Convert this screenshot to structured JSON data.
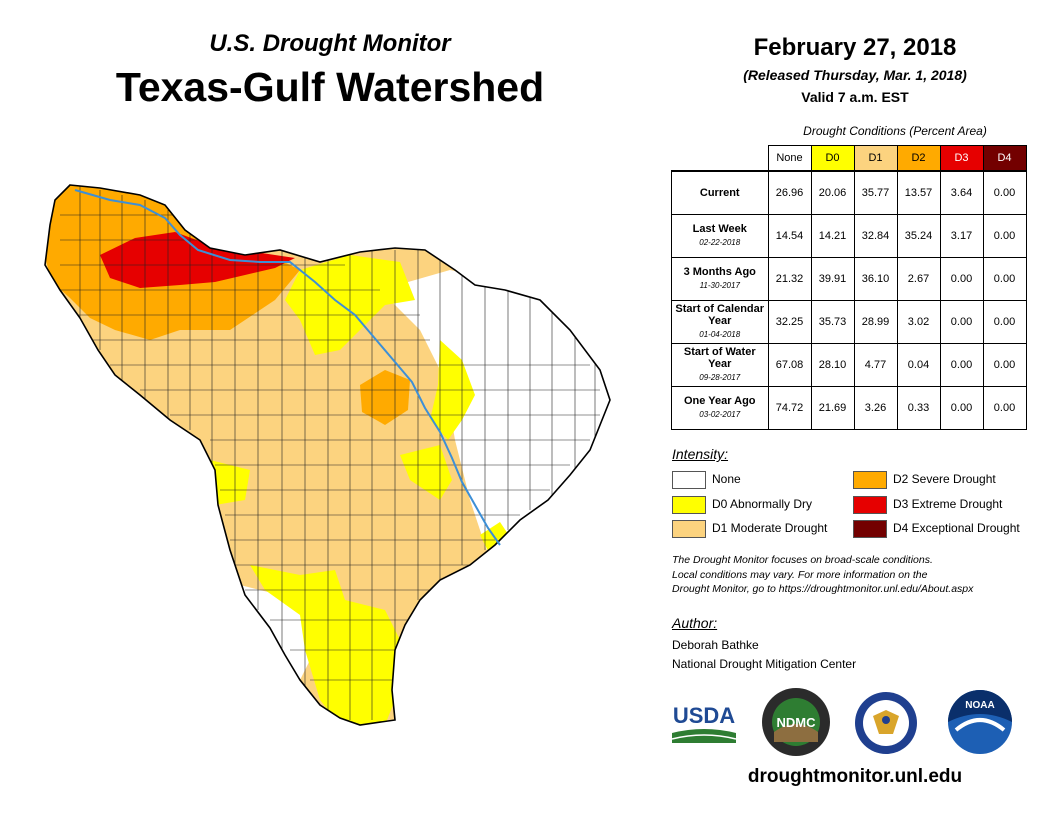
{
  "header": {
    "subtitle": "U.S. Drought Monitor",
    "title": "Texas-Gulf Watershed",
    "date": "February 27, 2018",
    "released": "(Released Thursday, Mar. 1, 2018)",
    "valid": "Valid 7 a.m. EST"
  },
  "table": {
    "caption": "Drought Conditions (Percent Area)",
    "columns": [
      "None",
      "D0",
      "D1",
      "D2",
      "D3",
      "D4"
    ],
    "rows": [
      {
        "label": "Current",
        "date": "",
        "values": [
          "26.96",
          "20.06",
          "35.77",
          "13.57",
          "3.64",
          "0.00"
        ]
      },
      {
        "label": "Last Week",
        "date": "02-22-2018",
        "values": [
          "14.54",
          "14.21",
          "32.84",
          "35.24",
          "3.17",
          "0.00"
        ]
      },
      {
        "label": "3 Months Ago",
        "date": "11-30-2017",
        "values": [
          "21.32",
          "39.91",
          "36.10",
          "2.67",
          "0.00",
          "0.00"
        ]
      },
      {
        "label": "Start of Calendar Year",
        "date": "01-04-2018",
        "values": [
          "32.25",
          "35.73",
          "28.99",
          "3.02",
          "0.00",
          "0.00"
        ]
      },
      {
        "label": "Start of Water Year",
        "date": "09-28-2017",
        "values": [
          "67.08",
          "28.10",
          "4.77",
          "0.04",
          "0.00",
          "0.00"
        ]
      },
      {
        "label": "One Year Ago",
        "date": "03-02-2017",
        "values": [
          "74.72",
          "21.69",
          "3.26",
          "0.33",
          "0.00",
          "0.00"
        ]
      }
    ]
  },
  "legend": {
    "heading": "Intensity:",
    "items": [
      {
        "label": "None",
        "color": "#ffffff"
      },
      {
        "label": "D0 Abnormally Dry",
        "color": "#ffff00"
      },
      {
        "label": "D1 Moderate Drought",
        "color": "#fcd37f"
      },
      {
        "label": "D2 Severe Drought",
        "color": "#ffaa00"
      },
      {
        "label": "D3 Extreme Drought",
        "color": "#e60000"
      },
      {
        "label": "D4 Exceptional Drought",
        "color": "#730000"
      }
    ]
  },
  "note": {
    "line1": "The Drought Monitor focuses on broad-scale conditions.",
    "line2": "Local conditions may vary. For more information on the",
    "line3": "Drought Monitor, go to https://droughtmonitor.unl.edu/About.aspx"
  },
  "author": {
    "heading": "Author:",
    "name": "Deborah Bathke",
    "org": "National Drought Mitigation Center"
  },
  "logos": {
    "usda": "USDA",
    "ndmc": "NDMC",
    "noaa": "NOAA"
  },
  "footer": {
    "url": "droughtmonitor.unl.edu"
  },
  "colors": {
    "river": "#3d8fd6",
    "county_line": "#222222"
  }
}
